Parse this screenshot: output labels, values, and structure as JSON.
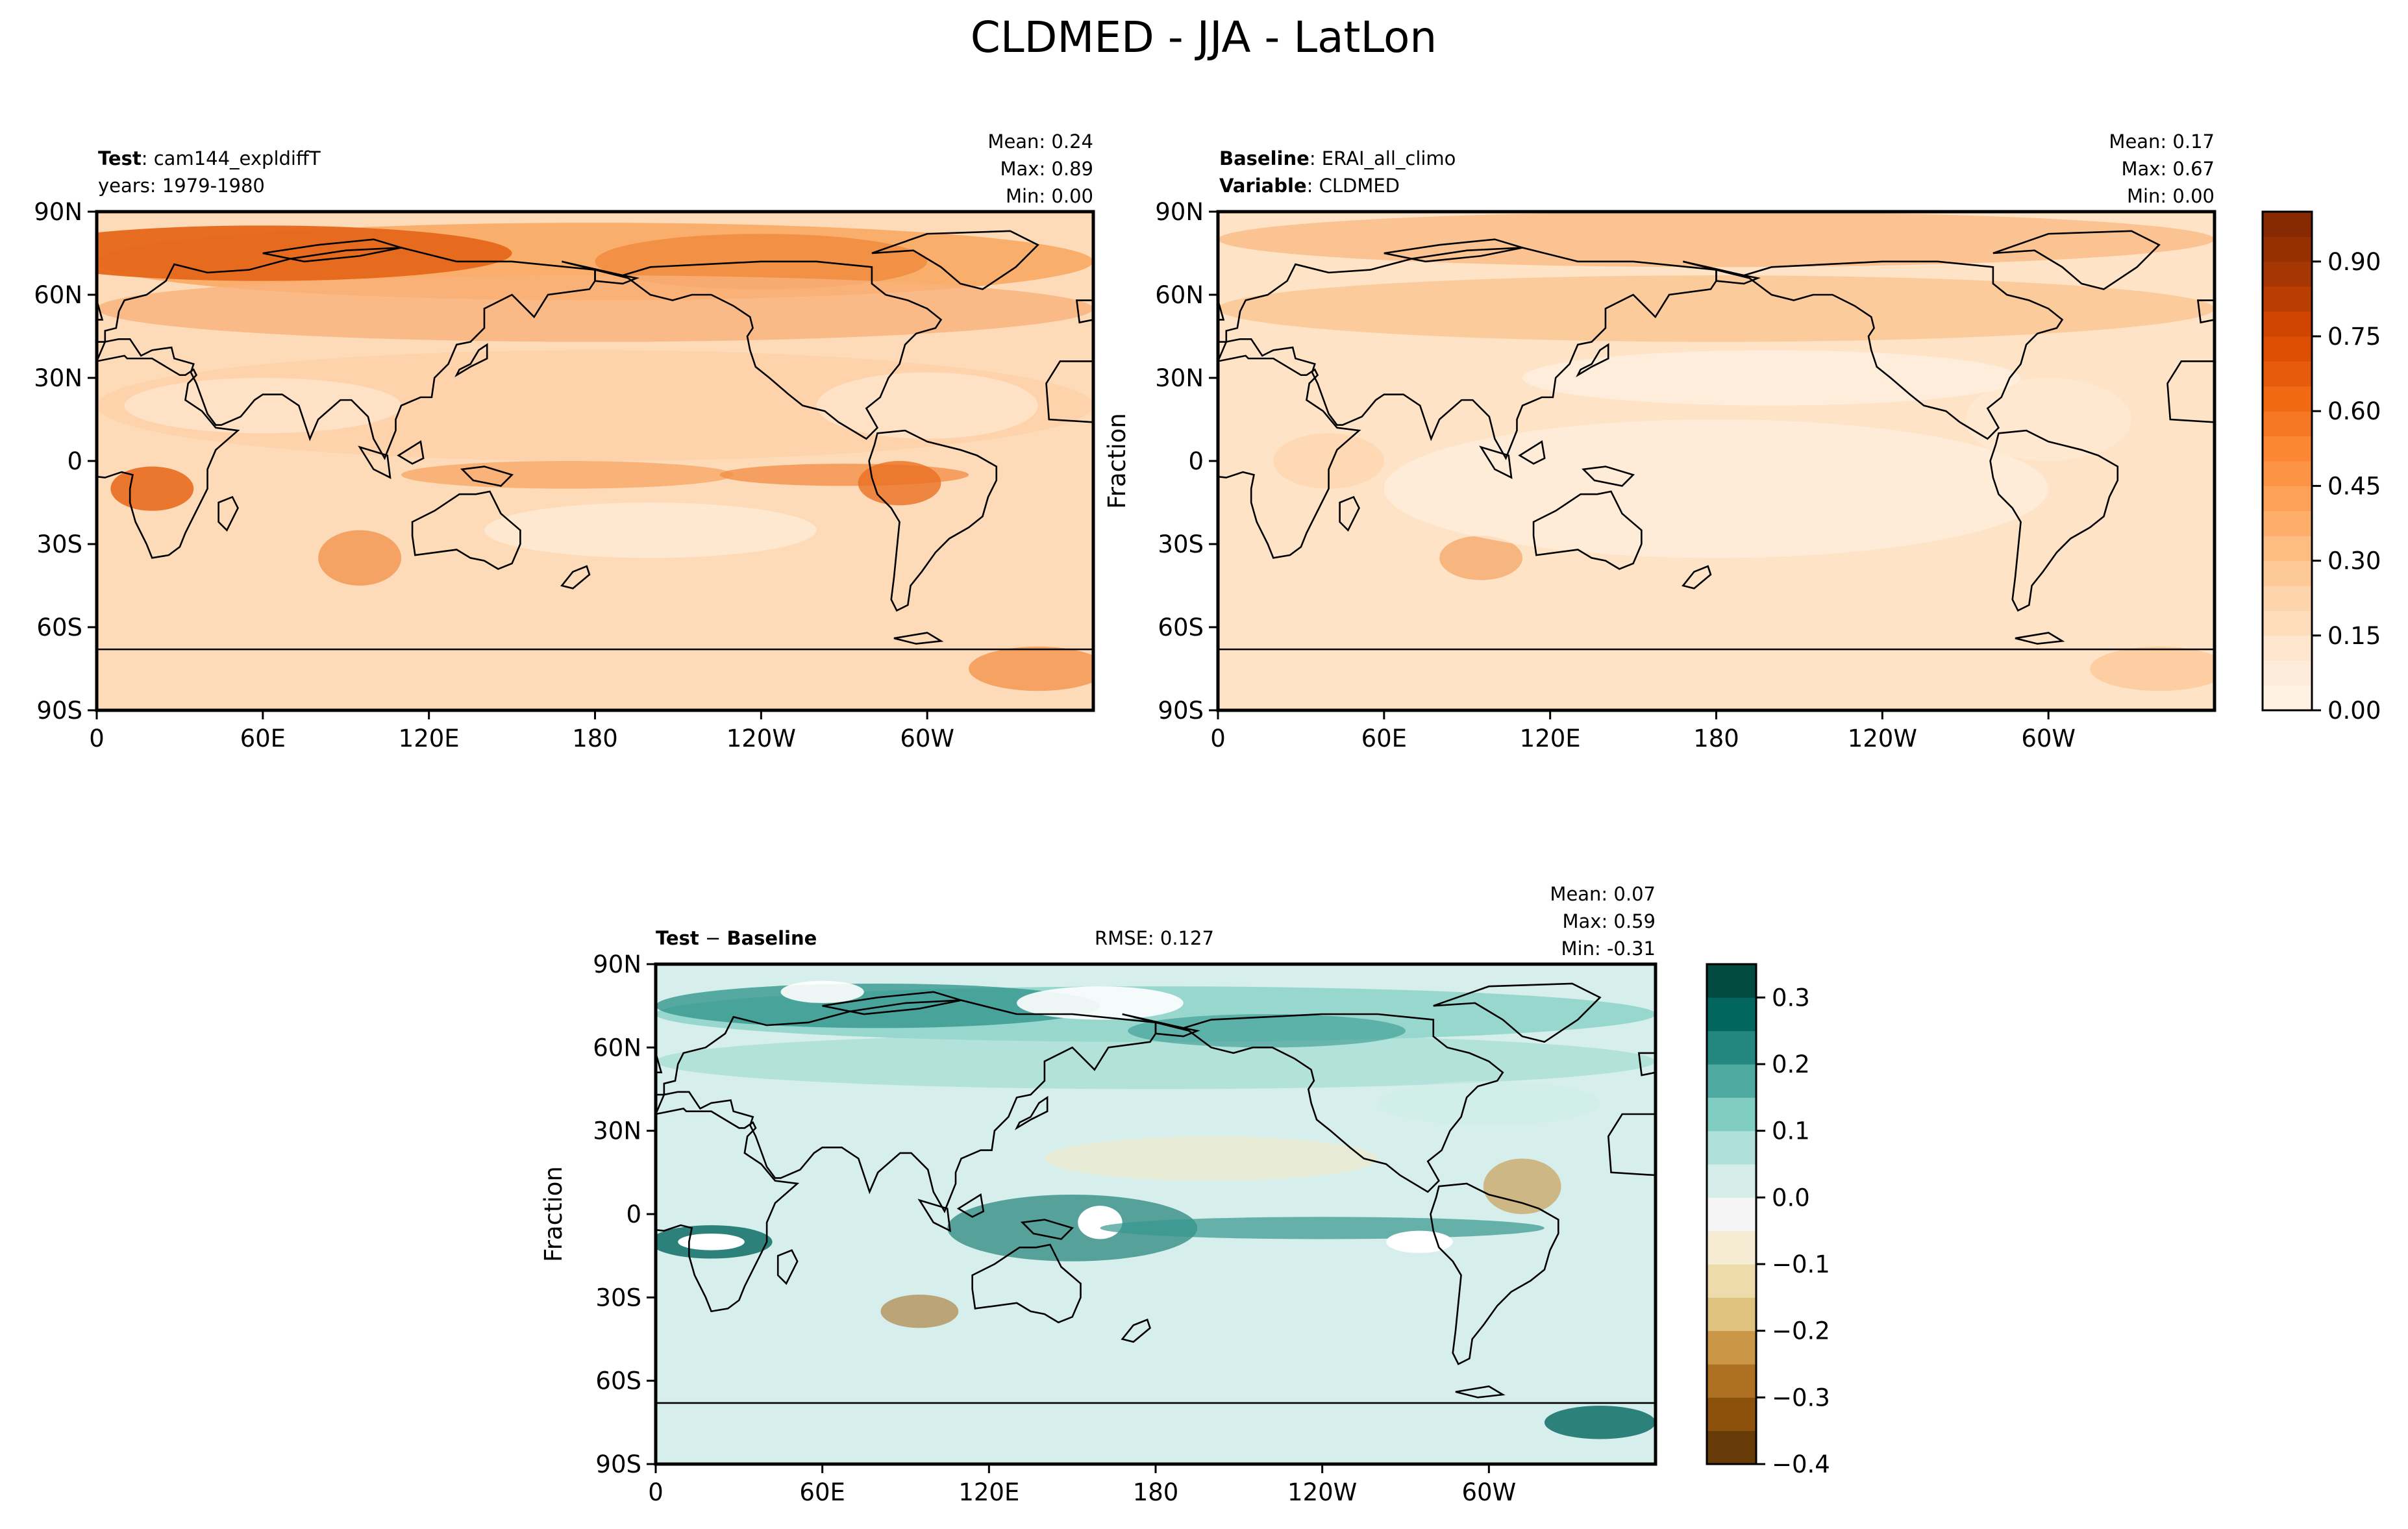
{
  "figure": {
    "title": "CLDMED - JJA - LatLon"
  },
  "chart_data": [
    {
      "type": "heatmap",
      "panel": "test",
      "header_left": [
        {
          "bold": "Test",
          "text": ": cam144_expldiffT"
        },
        {
          "bold": "",
          "text": "years: 1979-1980"
        }
      ],
      "stats": [
        {
          "label": "Mean:",
          "value": "0.24"
        },
        {
          "label": "Max:",
          "value": "0.89"
        },
        {
          "label": "Min:",
          "value": "0.00"
        }
      ],
      "ylabel": "",
      "x_ticks": [
        "0",
        "60E",
        "120E",
        "180",
        "120W",
        "60W"
      ],
      "y_ticks": [
        "90N",
        "60N",
        "30N",
        "0",
        "30S",
        "60S",
        "90S"
      ],
      "xlim": [
        0,
        360
      ],
      "ylim": [
        -90,
        90
      ],
      "colormap": "Oranges",
      "value_range": [
        0,
        1.0
      ]
    },
    {
      "type": "heatmap",
      "panel": "baseline",
      "header_left": [
        {
          "bold": "Baseline",
          "text": ": ERAI_all_climo"
        },
        {
          "bold": "Variable",
          "text": ": CLDMED"
        }
      ],
      "stats": [
        {
          "label": "Mean:",
          "value": "0.17"
        },
        {
          "label": "Max:",
          "value": "0.67"
        },
        {
          "label": "Min:",
          "value": "0.00"
        }
      ],
      "ylabel": "Fraction",
      "x_ticks": [
        "0",
        "60E",
        "120E",
        "180",
        "120W",
        "60W"
      ],
      "y_ticks": [
        "90N",
        "60N",
        "30N",
        "0",
        "30S",
        "60S",
        "90S"
      ],
      "xlim": [
        0,
        360
      ],
      "ylim": [
        -90,
        90
      ],
      "colormap": "Oranges",
      "value_range": [
        0,
        1.0
      ],
      "colorbar": {
        "ticks": [
          "0.00",
          "0.15",
          "0.30",
          "0.45",
          "0.60",
          "0.75",
          "0.90"
        ],
        "tick_values": [
          0,
          0.15,
          0.3,
          0.45,
          0.6,
          0.75,
          0.9
        ],
        "range": [
          0,
          1.0
        ],
        "levels": 20,
        "colors": [
          "#fff5eb",
          "#fee6ce",
          "#fdd0a2",
          "#fdae6b",
          "#fd8d3c",
          "#f16913",
          "#d94801",
          "#a63603",
          "#7f2704"
        ]
      }
    },
    {
      "type": "heatmap",
      "panel": "difference",
      "header_left": [
        {
          "bold": "Test",
          "text": " − "
        },
        {
          "bold": "Baseline",
          "text": ""
        }
      ],
      "rmse": "RMSE: 0.127",
      "stats": [
        {
          "label": "Mean:",
          "value": "0.07"
        },
        {
          "label": "Max:",
          "value": "0.59"
        },
        {
          "label": "Min:",
          "value": "-0.31"
        }
      ],
      "ylabel": "Fraction",
      "x_ticks": [
        "0",
        "60E",
        "120E",
        "180",
        "120W",
        "60W"
      ],
      "y_ticks": [
        "90N",
        "60N",
        "30N",
        "0",
        "30S",
        "60S",
        "90S"
      ],
      "xlim": [
        0,
        360
      ],
      "ylim": [
        -90,
        90
      ],
      "colormap": "BrBG",
      "value_range": [
        -0.4,
        0.35
      ],
      "colorbar": {
        "ticks": [
          "0.3",
          "0.2",
          "0.1",
          "0.0",
          "−0.1",
          "−0.2",
          "−0.3",
          "−0.4"
        ],
        "tick_values": [
          0.3,
          0.2,
          0.1,
          0.0,
          -0.1,
          -0.2,
          -0.3,
          -0.4
        ],
        "range": [
          -0.4,
          0.35
        ],
        "levels": 15,
        "colors": [
          "#543005",
          "#8c510a",
          "#bf812d",
          "#dfc27d",
          "#f6e8c3",
          "#f5f5f5",
          "#c7eae5",
          "#80cdc1",
          "#35978f",
          "#01665e",
          "#003c30"
        ]
      }
    }
  ]
}
